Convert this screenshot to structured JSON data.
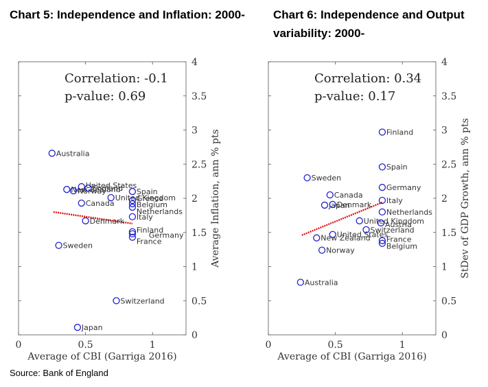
{
  "source": "Source:  Bank of England",
  "chart_data": [
    {
      "type": "scatter",
      "title": "Chart 5:  Independence and Inflation: 2000-",
      "xlabel": "Average of CBI (Garriga 2016)",
      "ylabel": "Average Inflation, ann % pts",
      "xlim": [
        0,
        1.25
      ],
      "ylim": [
        0,
        4
      ],
      "x_ticks": [
        "0",
        "0.5",
        "1"
      ],
      "y_ticks": [
        "0",
        "0.5",
        "1",
        "1.5",
        "2",
        "2.5",
        "3",
        "3.5",
        "4"
      ],
      "annotation": [
        "Correlation: -0.1",
        "p-value: 0.69"
      ],
      "trend": {
        "x": [
          0.26,
          0.85
        ],
        "y": [
          1.8,
          1.63
        ]
      },
      "points": [
        {
          "label": "Australia",
          "x": 0.25,
          "y": 2.66
        },
        {
          "label": "New Zealand",
          "x": 0.36,
          "y": 2.13
        },
        {
          "label": "Norway",
          "x": 0.41,
          "y": 2.11
        },
        {
          "label": "United States",
          "x": 0.47,
          "y": 2.17
        },
        {
          "label": "England",
          "x": 0.52,
          "y": 2.15
        },
        {
          "label": "Canada",
          "x": 0.47,
          "y": 1.93
        },
        {
          "label": "United Kingdom",
          "x": 0.69,
          "y": 2.01
        },
        {
          "label": "Spain",
          "x": 0.85,
          "y": 2.1
        },
        {
          "label": "Greece",
          "x": 0.85,
          "y": 1.97
        },
        {
          "label": "Belgium",
          "x": 0.85,
          "y": 1.92
        },
        {
          "label": "Netherlands",
          "x": 0.85,
          "y": 1.87
        },
        {
          "label": "Italy",
          "x": 0.85,
          "y": 1.73
        },
        {
          "label": "Denmark",
          "x": 0.5,
          "y": 1.67
        },
        {
          "label": "Finland",
          "x": 0.85,
          "y": 1.51
        },
        {
          "label": "Germany",
          "x": 0.85,
          "y": 1.48
        },
        {
          "label": "France",
          "x": 0.85,
          "y": 1.43
        },
        {
          "label": "Sweden",
          "x": 0.3,
          "y": 1.31
        },
        {
          "label": "Switzerland",
          "x": 0.73,
          "y": 0.5
        },
        {
          "label": "Japan",
          "x": 0.44,
          "y": 0.11
        }
      ]
    },
    {
      "type": "scatter",
      "title": "Chart 6: Independence and Output variability: 2000-",
      "xlabel": "Average of CBI (Garriga 2016)",
      "ylabel": "StDev of GDP Growth, ann % pts",
      "xlim": [
        0,
        1.25
      ],
      "ylim": [
        0,
        4
      ],
      "x_ticks": [
        "0",
        "0.5",
        "1"
      ],
      "y_ticks": [
        "0",
        "0.5",
        "1",
        "1.5",
        "2",
        "2.5",
        "3",
        "3.5",
        "4"
      ],
      "annotation": [
        "Correlation: 0.34",
        "p-value: 0.17"
      ],
      "trend": {
        "x": [
          0.25,
          0.85
        ],
        "y": [
          1.46,
          1.94
        ]
      },
      "points": [
        {
          "label": "Finland",
          "x": 0.85,
          "y": 2.97
        },
        {
          "label": "Spain",
          "x": 0.85,
          "y": 2.46
        },
        {
          "label": "Sweden",
          "x": 0.29,
          "y": 2.3
        },
        {
          "label": "Germany",
          "x": 0.85,
          "y": 2.16
        },
        {
          "label": "Canada",
          "x": 0.46,
          "y": 2.05
        },
        {
          "label": "Italy",
          "x": 0.85,
          "y": 1.97
        },
        {
          "label": "Japan",
          "x": 0.42,
          "y": 1.9
        },
        {
          "label": "Denmark",
          "x": 0.48,
          "y": 1.91
        },
        {
          "label": "Netherlands",
          "x": 0.85,
          "y": 1.8
        },
        {
          "label": "United Kingdom",
          "x": 0.68,
          "y": 1.67
        },
        {
          "label": "Austria",
          "x": 0.84,
          "y": 1.64
        },
        {
          "label": "Switzerland",
          "x": 0.73,
          "y": 1.54
        },
        {
          "label": "United States",
          "x": 0.48,
          "y": 1.47
        },
        {
          "label": "New Zealand",
          "x": 0.36,
          "y": 1.42
        },
        {
          "label": "France",
          "x": 0.85,
          "y": 1.38
        },
        {
          "label": "Belgium",
          "x": 0.85,
          "y": 1.34
        },
        {
          "label": "Norway",
          "x": 0.4,
          "y": 1.24
        },
        {
          "label": "Australia",
          "x": 0.24,
          "y": 0.77
        }
      ]
    }
  ]
}
